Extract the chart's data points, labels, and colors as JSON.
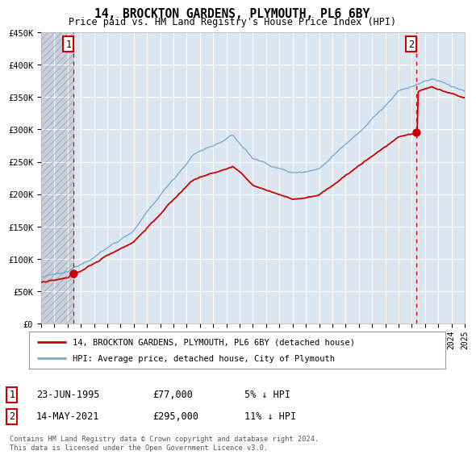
{
  "title": "14, BROCKTON GARDENS, PLYMOUTH, PL6 6BY",
  "subtitle": "Price paid vs. HM Land Registry's House Price Index (HPI)",
  "legend_line1": "14, BROCKTON GARDENS, PLYMOUTH, PL6 6BY (detached house)",
  "legend_line2": "HPI: Average price, detached house, City of Plymouth",
  "annotation1_date": "23-JUN-1995",
  "annotation1_price": "£77,000",
  "annotation1_hpi": "5% ↓ HPI",
  "annotation2_date": "14-MAY-2021",
  "annotation2_price": "£295,000",
  "annotation2_hpi": "11% ↓ HPI",
  "footnote": "Contains HM Land Registry data © Crown copyright and database right 2024.\nThis data is licensed under the Open Government Licence v3.0.",
  "hpi_color": "#7aaad0",
  "price_color": "#cc0000",
  "dot_color": "#cc0000",
  "vline_color": "#dd0000",
  "plot_bg_color": "#dce6f1",
  "grid_color": "#ffffff",
  "ylim": [
    0,
    450000
  ],
  "year_start": 1993,
  "year_end": 2025,
  "transaction1_year": 1995.47,
  "transaction2_year": 2021.37
}
